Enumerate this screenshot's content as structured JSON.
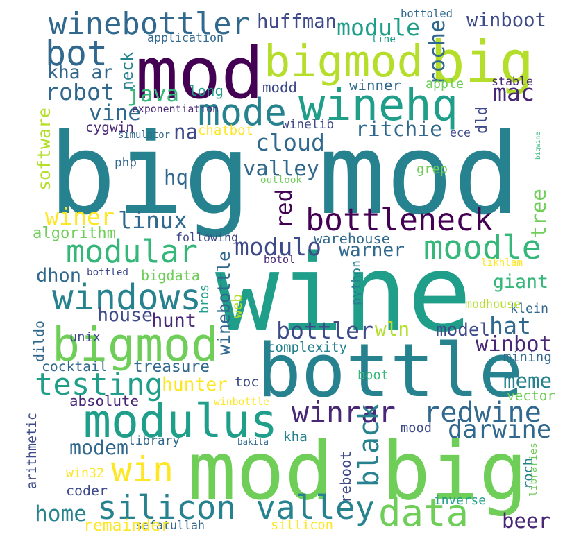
{
  "palette": {
    "background": "#ffffff",
    "v1": "#440154",
    "v2": "#482777",
    "v3": "#3e4a89",
    "v4": "#31688e",
    "v5": "#26828e",
    "v6": "#1f9e89",
    "v7": "#35b779",
    "v8": "#6ece58",
    "v9": "#b5de2b",
    "v10": "#fde725"
  },
  "words": [
    {
      "text": "wine",
      "color": "v6"
    },
    {
      "text": "big mod",
      "color": "v5"
    },
    {
      "text": "mod big",
      "color": "v8"
    },
    {
      "text": "bottle",
      "color": "v5"
    },
    {
      "text": "mod",
      "color": "v1"
    },
    {
      "text": "bigmod",
      "color": "v9"
    },
    {
      "text": "big",
      "color": "v9"
    },
    {
      "text": "bigmod",
      "color": "v8"
    },
    {
      "text": "modulus",
      "color": "v6"
    },
    {
      "text": "winehq",
      "color": "v6"
    },
    {
      "text": "winebottler",
      "color": "v4"
    },
    {
      "text": "bot",
      "color": "v4"
    },
    {
      "text": "mode",
      "color": "v5"
    },
    {
      "text": "silicon valley",
      "color": "v5"
    },
    {
      "text": "win",
      "color": "v10"
    },
    {
      "text": "data",
      "color": "v8"
    },
    {
      "text": "windows",
      "color": "v5"
    },
    {
      "text": "bottleneck",
      "color": "v1"
    },
    {
      "text": "modular",
      "color": "v7"
    },
    {
      "text": "moodle",
      "color": "v7"
    },
    {
      "text": "testing",
      "color": "v6"
    },
    {
      "text": "winrar",
      "color": "v2"
    },
    {
      "text": "redwine",
      "color": "v4"
    },
    {
      "text": "black",
      "color": "v5"
    },
    {
      "text": "module",
      "color": "v6"
    },
    {
      "text": "roche",
      "color": "v4"
    },
    {
      "text": "red",
      "color": "v1"
    },
    {
      "text": "robot",
      "color": "v4"
    },
    {
      "text": "cloud",
      "color": "v4"
    },
    {
      "text": "bottler",
      "color": "v3"
    },
    {
      "text": "winebottle",
      "color": "v4"
    },
    {
      "text": "mac",
      "color": "v2"
    },
    {
      "text": "valley",
      "color": "v4"
    },
    {
      "text": "linux",
      "color": "v4"
    },
    {
      "text": "modulo",
      "color": "v3"
    },
    {
      "text": "huffman",
      "color": "v3"
    },
    {
      "text": "winboot",
      "color": "v3"
    },
    {
      "text": "kha ar",
      "color": "v4"
    },
    {
      "text": "java",
      "color": "v7"
    },
    {
      "text": "vine",
      "color": "v4"
    },
    {
      "text": "ritchie",
      "color": "v4"
    },
    {
      "text": "dld",
      "color": "v3"
    },
    {
      "text": "tree",
      "color": "v8"
    },
    {
      "text": "giant",
      "color": "v7"
    },
    {
      "text": "home",
      "color": "v5"
    },
    {
      "text": "hat",
      "color": "v4"
    },
    {
      "text": "winbot",
      "color": "v2"
    },
    {
      "text": "darwine",
      "color": "v4"
    },
    {
      "text": "meme",
      "color": "v5"
    },
    {
      "text": "modem",
      "color": "v4"
    },
    {
      "text": "beer",
      "color": "v2"
    },
    {
      "text": "arithmetic",
      "color": "v3"
    },
    {
      "text": "winer",
      "color": "v10"
    },
    {
      "text": "hunter",
      "color": "v10"
    },
    {
      "text": "house",
      "color": "v3"
    },
    {
      "text": "hunt",
      "color": "v2"
    },
    {
      "text": "software",
      "color": "v9"
    },
    {
      "text": "dhon",
      "color": "v4"
    },
    {
      "text": "treasure",
      "color": "v4"
    },
    {
      "text": "hq",
      "color": "v4"
    },
    {
      "text": "na",
      "color": "v3"
    },
    {
      "text": "wln",
      "color": "v9"
    },
    {
      "text": "warner",
      "color": "v4"
    },
    {
      "text": "sefatullah",
      "color": "v4"
    },
    {
      "text": "complexity",
      "color": "v5"
    },
    {
      "text": "model",
      "color": "v3"
    },
    {
      "text": "mining",
      "color": "v4"
    },
    {
      "text": "cocktail",
      "color": "v4"
    },
    {
      "text": "toc",
      "color": "v3"
    },
    {
      "text": "absolute",
      "color": "v2"
    },
    {
      "text": "vector",
      "color": "v8"
    },
    {
      "text": "library",
      "color": "v4"
    },
    {
      "text": "mood",
      "color": "v3"
    },
    {
      "text": "kha",
      "color": "v5"
    },
    {
      "text": "coder",
      "color": "v3"
    },
    {
      "text": "boot",
      "color": "v7"
    },
    {
      "text": "klein",
      "color": "v4"
    },
    {
      "text": "roch",
      "color": "v5"
    },
    {
      "text": "libraries",
      "color": "v8"
    },
    {
      "text": "warehouse",
      "color": "v4"
    },
    {
      "text": "algorithm",
      "color": "v8"
    },
    {
      "text": "bigdata",
      "color": "v8"
    },
    {
      "text": "python",
      "color": "v5"
    },
    {
      "text": "reboot",
      "color": "v3"
    },
    {
      "text": "dildo",
      "color": "v4"
    },
    {
      "text": "unix",
      "color": "v3"
    },
    {
      "text": "long",
      "color": "v6"
    },
    {
      "text": "modd",
      "color": "v3"
    },
    {
      "text": "winner",
      "color": "v4"
    },
    {
      "text": "apple",
      "color": "v8"
    },
    {
      "text": "stable",
      "color": "v2"
    },
    {
      "text": "neck",
      "color": "v5"
    },
    {
      "text": "cygwin",
      "color": "v2"
    },
    {
      "text": "chatbot",
      "color": "v10"
    },
    {
      "text": "winelib",
      "color": "v3"
    },
    {
      "text": "php",
      "color": "v4"
    },
    {
      "text": "web",
      "color": "v9"
    },
    {
      "text": "bros",
      "color": "v6"
    },
    {
      "text": "sillicon",
      "color": "v10"
    },
    {
      "text": "remainder",
      "color": "v10"
    },
    {
      "text": "win32",
      "color": "v10"
    },
    {
      "text": "inverse",
      "color": "v6"
    },
    {
      "text": "bakita",
      "color": "v4"
    },
    {
      "text": "winbottle",
      "color": "v10"
    },
    {
      "text": "modhouse",
      "color": "v9"
    },
    {
      "text": "likhlam",
      "color": "v10"
    },
    {
      "text": "botol",
      "color": "v2"
    },
    {
      "text": "bottled",
      "color": "v3"
    },
    {
      "text": "following",
      "color": "v3"
    },
    {
      "text": "grep",
      "color": "v8"
    },
    {
      "text": "outlook",
      "color": "v8"
    },
    {
      "text": "ece",
      "color": "v3"
    },
    {
      "text": "bigwine",
      "color": "v7"
    },
    {
      "text": "simulator",
      "color": "v4"
    },
    {
      "text": "exponentiation",
      "color": "v2"
    },
    {
      "text": "application",
      "color": "v4"
    },
    {
      "text": "line",
      "color": "v6"
    },
    {
      "text": "bottoled",
      "color": "v4"
    }
  ]
}
